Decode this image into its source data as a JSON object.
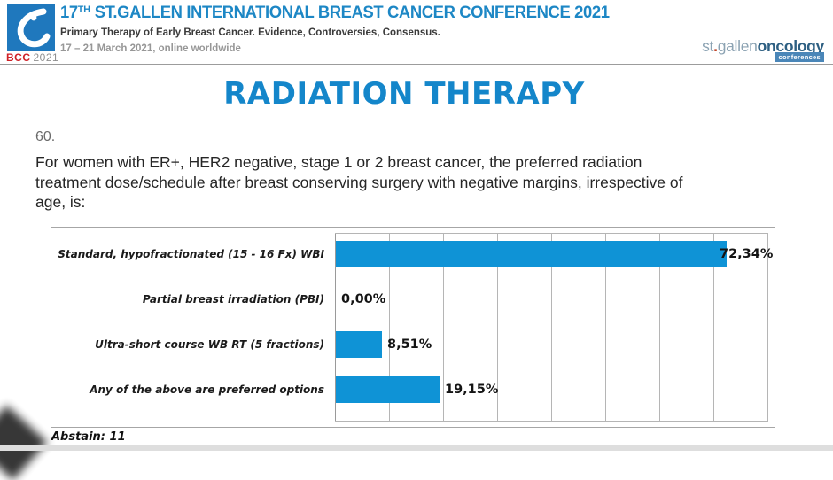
{
  "header": {
    "logo": {
      "badge": "BCC",
      "year": "2021",
      "square_color": "#1f78bd",
      "badge_color": "#cf2127"
    },
    "title_num": "17",
    "title_sup": "TH",
    "title_rest": " ST.GALLEN INTERNATIONAL BREAST CANCER CONFERENCE 2021",
    "subtitle": "Primary Therapy of Early Breast Cancer. Evidence, Controversies, Consensus.",
    "dates": "17 – 21 March 2021, online worldwide",
    "brand": {
      "part1": "st",
      "dot": ".",
      "part2": "gallen",
      "part3": "oncology",
      "badge": "conferences"
    }
  },
  "slide": {
    "section_title": "RADIATION THERAPY",
    "question_number": "60.",
    "question_lines": [
      "For women with ER+, HER2 negative, stage 1 or 2 breast cancer, the preferred radiation",
      "treatment dose/schedule after breast conserving surgery with negative margins, irrespective of",
      "age, is:"
    ],
    "abstain": "Abstain: 11"
  },
  "chart_data": {
    "type": "bar",
    "orientation": "horizontal",
    "title": "",
    "xlabel": "",
    "ylabel": "",
    "categories": [
      "Standard, hypofractionated (15 - 16 Fx) WBI",
      "Partial breast irradiation (PBI)",
      "Ultra-short course WB RT (5 fractions)",
      "Any of the above are preferred options"
    ],
    "values": [
      72.34,
      0.0,
      8.51,
      19.15
    ],
    "value_labels": [
      "72,34%",
      "0,00%",
      "8,51%",
      "19,15%"
    ],
    "xlim": [
      0,
      80
    ],
    "gridline_step": 10,
    "grid": true,
    "legend": false,
    "bar_color": "#0f93d6"
  },
  "colors": {
    "accent_blue": "#1486ca",
    "bar_blue": "#0f93d6",
    "logo_blue": "#1f78bd"
  }
}
